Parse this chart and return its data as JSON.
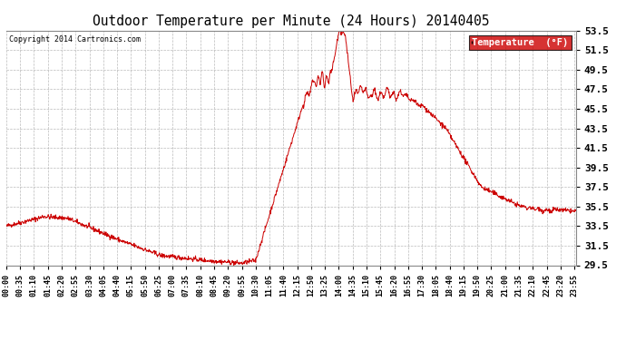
{
  "title": "Outdoor Temperature per Minute (24 Hours) 20140405",
  "copyright_text": "Copyright 2014 Cartronics.com",
  "legend_label": "Temperature  (°F)",
  "legend_bg": "#cc0000",
  "legend_text_color": "#ffffff",
  "line_color": "#cc0000",
  "background_color": "#ffffff",
  "grid_color": "#aaaaaa",
  "ylim": [
    29.5,
    53.5
  ],
  "yticks": [
    29.5,
    31.5,
    33.5,
    35.5,
    37.5,
    39.5,
    41.5,
    43.5,
    45.5,
    47.5,
    49.5,
    51.5,
    53.5
  ],
  "xtick_labels": [
    "00:00",
    "00:35",
    "01:10",
    "01:45",
    "02:20",
    "02:55",
    "03:30",
    "04:05",
    "04:40",
    "05:15",
    "05:50",
    "06:25",
    "07:00",
    "07:35",
    "08:10",
    "08:45",
    "09:20",
    "09:55",
    "10:30",
    "11:05",
    "11:40",
    "12:15",
    "12:50",
    "13:25",
    "14:00",
    "14:35",
    "15:10",
    "15:45",
    "16:20",
    "16:55",
    "17:30",
    "18:05",
    "18:40",
    "19:15",
    "19:50",
    "20:25",
    "21:00",
    "21:35",
    "22:10",
    "22:45",
    "23:20",
    "23:55"
  ]
}
